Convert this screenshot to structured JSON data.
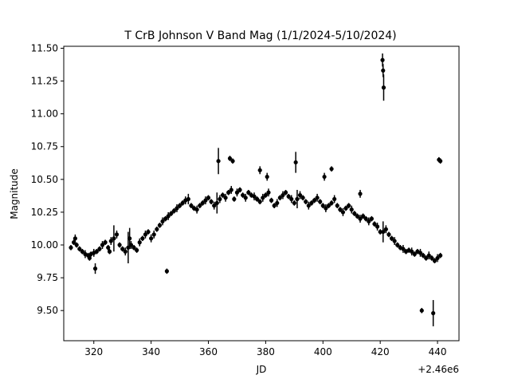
{
  "chart_data": {
    "type": "scatter",
    "title": "T CrB Johnson V Band Mag (1/1/2024-5/10/2024)",
    "xlabel": "JD",
    "ylabel": "Magnitude",
    "x_offset_label": "+2.46e6",
    "xlim": [
      309.5,
      447.5
    ],
    "ylim": [
      9.27,
      11.515
    ],
    "y_inverted": false,
    "grid": false,
    "legend": "none",
    "marker_color": "#000000",
    "x_ticks": [
      320,
      340,
      360,
      380,
      400,
      420,
      440
    ],
    "x_tick_labels": [
      "320",
      "340",
      "360",
      "380",
      "400",
      "420",
      "440"
    ],
    "y_ticks": [
      9.5,
      9.75,
      10.0,
      10.25,
      10.5,
      10.75,
      11.0,
      11.25,
      11.5
    ],
    "y_tick_labels": [
      "9.50",
      "9.75",
      "10.00",
      "10.25",
      "10.50",
      "10.75",
      "11.00",
      "11.25",
      "11.50"
    ],
    "series": [
      {
        "x": [
          312,
          313,
          313.5,
          314,
          315,
          316,
          317,
          318,
          318.5,
          319,
          320,
          320.5,
          321,
          322,
          323,
          324,
          325,
          325.5,
          326,
          327,
          328,
          329,
          330,
          331,
          332,
          332.5,
          333,
          334,
          335,
          336,
          337,
          338,
          339,
          340,
          341,
          342,
          343,
          344,
          345,
          345.5,
          346,
          347,
          348,
          349,
          350,
          351,
          352,
          353,
          354,
          355,
          356,
          357,
          358,
          359,
          360,
          361,
          362,
          363,
          364,
          365,
          366,
          367,
          368,
          369,
          370,
          371,
          372,
          373,
          374,
          375,
          376,
          377,
          378,
          379,
          380,
          381,
          382,
          383,
          384,
          385,
          386,
          387,
          388,
          389,
          390,
          391,
          392,
          393,
          394,
          395,
          396,
          397,
          398,
          399,
          400,
          401,
          402,
          403,
          404,
          405,
          406,
          407,
          408,
          409,
          410,
          411,
          412,
          413,
          414,
          415,
          416,
          417,
          418,
          419,
          420,
          421,
          422,
          423,
          424,
          425,
          426,
          427,
          428,
          429,
          430,
          431,
          432,
          433,
          434,
          435,
          436,
          437,
          438,
          439,
          440,
          441
        ],
        "y": [
          9.98,
          10.02,
          10.05,
          10.0,
          9.97,
          9.95,
          9.93,
          9.92,
          9.9,
          9.93,
          9.94,
          9.82,
          9.95,
          9.97,
          10.0,
          10.02,
          9.98,
          9.95,
          10.03,
          10.05,
          10.08,
          10.0,
          9.97,
          9.95,
          9.98,
          10.05,
          10.0,
          9.98,
          9.96,
          10.02,
          10.05,
          10.08,
          10.1,
          10.05,
          10.08,
          10.12,
          10.15,
          10.18,
          10.2,
          9.8,
          10.22,
          10.24,
          10.26,
          10.28,
          10.3,
          10.32,
          10.34,
          10.35,
          10.3,
          10.28,
          10.27,
          10.3,
          10.32,
          10.34,
          10.36,
          10.33,
          10.3,
          10.32,
          10.35,
          10.38,
          10.36,
          10.4,
          10.42,
          10.35,
          10.4,
          10.42,
          10.38,
          10.36,
          10.4,
          10.38,
          10.37,
          10.35,
          10.33,
          10.36,
          10.38,
          10.4,
          10.34,
          10.3,
          10.32,
          10.36,
          10.38,
          10.4,
          10.37,
          10.35,
          10.32,
          10.35,
          10.38,
          10.36,
          10.33,
          10.3,
          10.32,
          10.34,
          10.36,
          10.33,
          10.3,
          10.28,
          10.3,
          10.32,
          10.35,
          10.3,
          10.27,
          10.25,
          10.28,
          10.3,
          10.27,
          10.24,
          10.22,
          10.2,
          10.22,
          10.2,
          10.18,
          10.2,
          10.16,
          10.14,
          10.1,
          10.1,
          10.12,
          10.08,
          10.05,
          10.03,
          10.0,
          9.98,
          9.97,
          9.95,
          9.96,
          9.95,
          9.93,
          9.95,
          9.94,
          9.92,
          9.9,
          9.92,
          9.9,
          9.88,
          9.9,
          9.92
        ],
        "err": [
          0.02,
          0.02,
          0.03,
          0.02,
          0.02,
          0.02,
          0.03,
          0.02,
          0.02,
          0.02,
          0.03,
          0.04,
          0.02,
          0.02,
          0.03,
          0.02,
          0.02,
          0.02,
          0.03,
          0.1,
          0.03,
          0.02,
          0.02,
          0.03,
          0.12,
          0.08,
          0.03,
          0.02,
          0.02,
          0.03,
          0.02,
          0.03,
          0.02,
          0.03,
          0.03,
          0.02,
          0.02,
          0.03,
          0.02,
          0.02,
          0.03,
          0.02,
          0.02,
          0.03,
          0.02,
          0.02,
          0.03,
          0.04,
          0.02,
          0.02,
          0.03,
          0.02,
          0.02,
          0.03,
          0.02,
          0.02,
          0.03,
          0.08,
          0.03,
          0.02,
          0.03,
          0.02,
          0.03,
          0.02,
          0.03,
          0.02,
          0.02,
          0.03,
          0.02,
          0.02,
          0.03,
          0.02,
          0.02,
          0.03,
          0.02,
          0.03,
          0.02,
          0.02,
          0.03,
          0.02,
          0.03,
          0.02,
          0.02,
          0.03,
          0.02,
          0.07,
          0.03,
          0.02,
          0.02,
          0.03,
          0.02,
          0.02,
          0.03,
          0.02,
          0.02,
          0.03,
          0.02,
          0.02,
          0.03,
          0.02,
          0.02,
          0.03,
          0.02,
          0.02,
          0.03,
          0.02,
          0.02,
          0.03,
          0.02,
          0.02,
          0.03,
          0.02,
          0.02,
          0.03,
          0.02,
          0.08,
          0.03,
          0.02,
          0.02,
          0.03,
          0.02,
          0.02,
          0.03,
          0.02,
          0.02,
          0.03,
          0.02,
          0.02,
          0.03,
          0.02,
          0.02,
          0.03,
          0.02,
          0.02,
          0.03,
          0.02
        ]
      }
    ],
    "outliers": {
      "x": [
        363.5,
        367.5,
        368.5,
        378,
        380.5,
        390.5,
        400.5,
        403,
        413,
        420.8,
        421,
        421.2,
        434.5,
        438.5,
        440.5,
        441
      ],
      "y": [
        10.64,
        10.66,
        10.64,
        10.57,
        10.52,
        10.63,
        10.52,
        10.58,
        10.39,
        11.41,
        11.33,
        11.2,
        9.5,
        9.48,
        10.65,
        10.64
      ],
      "err": [
        0.1,
        0.02,
        0.02,
        0.03,
        0.03,
        0.08,
        0.03,
        0.02,
        0.03,
        0.05,
        0.05,
        0.1,
        0.02,
        0.1,
        0.02,
        0.02
      ]
    }
  }
}
